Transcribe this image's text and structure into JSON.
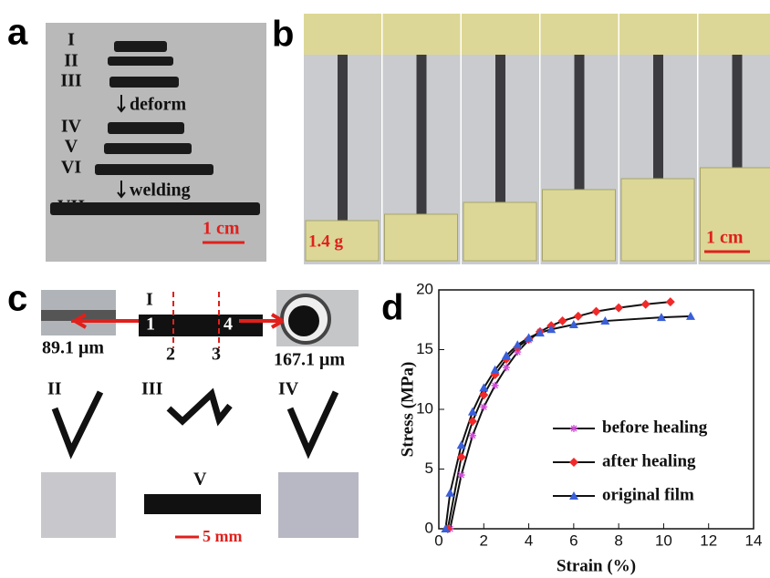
{
  "panels": {
    "a": {
      "label": "a",
      "rows": [
        "I",
        "II",
        "III",
        "IV",
        "V",
        "VI",
        "VII"
      ],
      "deform": "deform",
      "welding": "welding",
      "scale": "1 cm"
    },
    "b": {
      "label": "b",
      "weight": "1.4 g",
      "scale": "1 cm"
    },
    "c": {
      "label": "c",
      "sample": "I",
      "points": [
        "1",
        "2",
        "3",
        "4"
      ],
      "thickness": "89.1 μm",
      "diameter": "167.1 μm",
      "shapes": [
        "II",
        "III",
        "IV",
        "V"
      ],
      "scale": "5 mm"
    },
    "d": {
      "label": "d"
    }
  },
  "chart_data": {
    "type": "line",
    "xlabel": "Strain (%)",
    "ylabel": "Stress (MPa)",
    "xlim": [
      0,
      14
    ],
    "xticks": [
      0,
      2,
      4,
      6,
      8,
      10,
      12,
      14
    ],
    "ylim": [
      0,
      20
    ],
    "yticks": [
      0,
      5,
      10,
      15,
      20
    ],
    "legend": "lower right",
    "series": [
      {
        "name": "before healing",
        "color": "#d04ad8",
        "marker": "asterisk",
        "x": [
          0.5,
          1,
          1.5,
          2,
          2.5,
          3,
          3.5,
          4,
          4.5
        ],
        "values": [
          0,
          4.5,
          7.8,
          10.2,
          12,
          13.5,
          14.8,
          15.8,
          16.5
        ]
      },
      {
        "name": "after healing",
        "color": "#f02a2a",
        "marker": "diamond",
        "x": [
          0.4,
          1,
          1.5,
          2,
          2.5,
          3,
          3.5,
          4,
          4.5,
          5,
          5.5,
          6.2,
          7,
          8,
          9.2,
          10.3
        ],
        "values": [
          0,
          6,
          9,
          11.2,
          12.9,
          14.2,
          15.2,
          15.9,
          16.5,
          17,
          17.4,
          17.8,
          18.2,
          18.5,
          18.8,
          19
        ]
      },
      {
        "name": "original film",
        "color": "#3a5fd8",
        "marker": "triangle",
        "x": [
          0.3,
          0.5,
          1,
          1.5,
          2,
          2.5,
          3,
          3.5,
          4,
          4.5,
          5,
          6,
          7.4,
          9.9,
          11.2
        ],
        "values": [
          0,
          3,
          7,
          9.8,
          11.8,
          13.3,
          14.5,
          15.4,
          16,
          16.4,
          16.7,
          17.1,
          17.4,
          17.7,
          17.8
        ]
      }
    ]
  }
}
